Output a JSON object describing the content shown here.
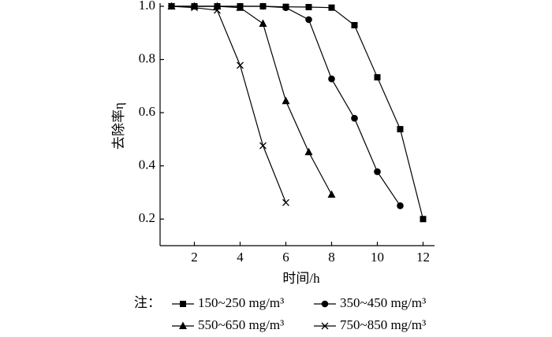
{
  "chart_data": {
    "type": "line",
    "xlabel": "时间/h",
    "ylabel": "去除率η",
    "legend_note": "注：",
    "xlim": [
      0.5,
      12.5
    ],
    "ylim": [
      0.1,
      1.0
    ],
    "xticks": [
      2,
      4,
      6,
      8,
      10,
      12
    ],
    "yticks": [
      0.2,
      0.4,
      0.6,
      0.8,
      {
        "value": 1,
        "label": "1.0"
      }
    ],
    "grid": false,
    "series": [
      {
        "name": "150~250 mg/m³",
        "color": "#000000",
        "marker": "square",
        "x": [
          1,
          2,
          3,
          4,
          5,
          6,
          7,
          8,
          9,
          10,
          11,
          12
        ],
        "values": [
          1.0,
          1.0,
          1.0,
          1.0,
          1.0,
          0.998,
          0.997,
          0.995,
          0.929,
          0.733,
          0.538,
          0.2
        ]
      },
      {
        "name": "350~450 mg/m³",
        "color": "#000000",
        "marker": "circle",
        "x": [
          1,
          2,
          3,
          4,
          5,
          6,
          7,
          8,
          9,
          10,
          11
        ],
        "values": [
          1.0,
          1.0,
          1.0,
          1.0,
          1.0,
          0.995,
          0.95,
          0.727,
          0.579,
          0.378,
          0.25
        ]
      },
      {
        "name": "550~650 mg/m³",
        "color": "#000000",
        "marker": "triangle",
        "x": [
          1,
          2,
          3,
          4,
          5,
          6,
          7,
          8
        ],
        "values": [
          1.0,
          1.0,
          1.0,
          0.995,
          0.935,
          0.644,
          0.452,
          0.292
        ]
      },
      {
        "name": "750~850 mg/m³",
        "color": "#000000",
        "marker": "cross",
        "x": [
          1,
          2,
          3,
          4,
          5,
          6
        ],
        "values": [
          1.0,
          0.995,
          0.985,
          0.778,
          0.476,
          0.262
        ]
      }
    ]
  }
}
